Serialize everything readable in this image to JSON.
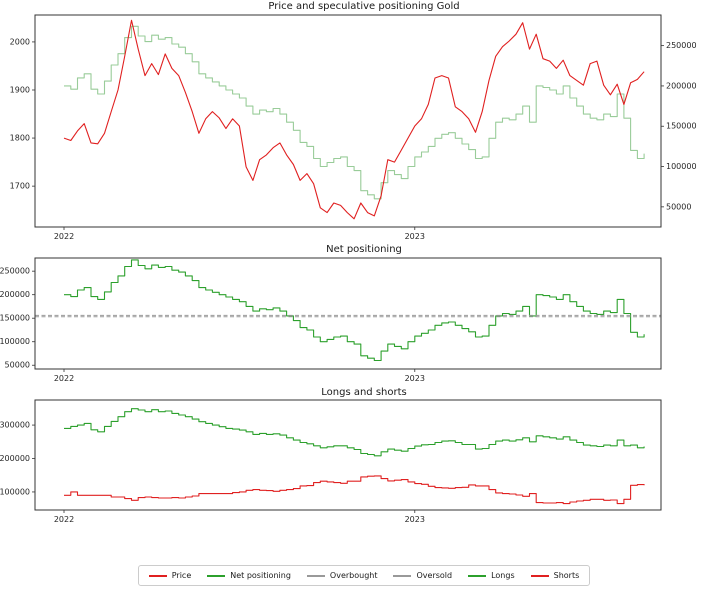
{
  "figure": {
    "background": "#ffffff",
    "axis_color": "#333333",
    "tick_color": "#262626"
  },
  "legend": {
    "items": [
      {
        "label": "Price",
        "color": "#e02020"
      },
      {
        "label": "Net positioning",
        "color": "#2ca02c"
      },
      {
        "label": "Overbought",
        "color": "#999999"
      },
      {
        "label": "Oversold",
        "color": "#999999"
      },
      {
        "label": "Longs",
        "color": "#2ca02c"
      },
      {
        "label": "Shorts",
        "color": "#e02020"
      }
    ]
  },
  "series_values": {
    "price": [
      1800,
      1795,
      1815,
      1830,
      1790,
      1788,
      1810,
      1855,
      1900,
      1970,
      2045,
      1985,
      1930,
      1955,
      1932,
      1975,
      1945,
      1930,
      1895,
      1855,
      1810,
      1840,
      1855,
      1842,
      1820,
      1840,
      1825,
      1740,
      1712,
      1755,
      1765,
      1780,
      1790,
      1765,
      1745,
      1712,
      1726,
      1705,
      1655,
      1645,
      1665,
      1660,
      1645,
      1632,
      1665,
      1645,
      1638,
      1680,
      1755,
      1750,
      1775,
      1800,
      1825,
      1840,
      1870,
      1925,
      1930,
      1925,
      1865,
      1855,
      1840,
      1812,
      1855,
      1920,
      1970,
      1990,
      2002,
      2016,
      2040,
      1985,
      2016,
      1965,
      1960,
      1945,
      1962,
      1930,
      1920,
      1910,
      1955,
      1960,
      1910,
      1890,
      1912,
      1870,
      1915,
      1922,
      1938
    ],
    "net": [
      200000,
      196000,
      210000,
      215000,
      196000,
      190000,
      206000,
      226000,
      240000,
      260000,
      274000,
      262000,
      255000,
      263000,
      258000,
      260000,
      252000,
      248000,
      240000,
      230000,
      215000,
      210000,
      205000,
      200000,
      195000,
      190000,
      185000,
      175000,
      165000,
      170000,
      168000,
      172000,
      165000,
      155000,
      145000,
      130000,
      125000,
      110000,
      100000,
      105000,
      110000,
      112000,
      100000,
      95000,
      70000,
      65000,
      60000,
      80000,
      95000,
      90000,
      85000,
      100000,
      112000,
      118000,
      125000,
      135000,
      140000,
      142000,
      135000,
      128000,
      121000,
      110000,
      112000,
      135000,
      155000,
      160000,
      158000,
      165000,
      175000,
      155000,
      200000,
      198000,
      195000,
      190000,
      200000,
      185000,
      175000,
      165000,
      160000,
      158000,
      165000,
      162000,
      190000,
      160000,
      120000,
      110000,
      116000
    ],
    "longs": [
      290000,
      296000,
      300000,
      305000,
      286000,
      280000,
      296000,
      311000,
      325000,
      340000,
      349000,
      345000,
      340000,
      346000,
      340000,
      342000,
      335000,
      330000,
      325000,
      318000,
      310000,
      305000,
      300000,
      295000,
      290000,
      288000,
      285000,
      280000,
      272000,
      275000,
      272000,
      274000,
      270000,
      262000,
      255000,
      248000,
      244000,
      238000,
      232000,
      235000,
      238000,
      238000,
      232000,
      227000,
      215000,
      212000,
      208000,
      220000,
      228000,
      225000,
      222000,
      230000,
      237000,
      241000,
      242000,
      248000,
      252000,
      253000,
      248000,
      242000,
      242000,
      228000,
      230000,
      242000,
      252000,
      255000,
      252000,
      256000,
      262000,
      250000,
      268000,
      265000,
      262000,
      258000,
      265000,
      255000,
      248000,
      240000,
      238000,
      236000,
      240000,
      238000,
      255000,
      238000,
      240000,
      232000,
      236000
    ],
    "shorts": [
      90000,
      100000,
      90000,
      90000,
      90000,
      90000,
      90000,
      85000,
      85000,
      80000,
      75000,
      83000,
      85000,
      83000,
      82000,
      82000,
      83000,
      82000,
      85000,
      88000,
      95000,
      95000,
      95000,
      95000,
      95000,
      98000,
      100000,
      105000,
      107000,
      105000,
      104000,
      102000,
      105000,
      107000,
      110000,
      118000,
      119000,
      128000,
      132000,
      130000,
      128000,
      126000,
      132000,
      132000,
      145000,
      147000,
      148000,
      140000,
      133000,
      135000,
      137000,
      130000,
      125000,
      123000,
      117000,
      113000,
      112000,
      111000,
      113000,
      114000,
      121000,
      118000,
      118000,
      107000,
      97000,
      95000,
      94000,
      91000,
      87000,
      95000,
      68000,
      67000,
      67000,
      68000,
      65000,
      70000,
      73000,
      75000,
      78000,
      78000,
      75000,
      76000,
      65000,
      78000,
      120000,
      122000,
      120000
    ]
  },
  "chart_data": [
    {
      "type": "line",
      "title": "Price and speculative positioning Gold",
      "xlim": [
        -4.3,
        88.5
      ],
      "xticks": [
        0,
        52
      ],
      "xtick_labels": [
        "2022",
        "2023"
      ],
      "left_axis": {
        "ylabel": "",
        "ylim": [
          1615,
          2056
        ],
        "ticks": [
          1700,
          1800,
          1900,
          2000
        ]
      },
      "right_axis": {
        "ylabel": "",
        "ylim": [
          25000,
          288000
        ],
        "ticks": [
          50000,
          100000,
          150000,
          200000,
          250000
        ]
      },
      "series": [
        {
          "name": "Net positioning",
          "ref": "net",
          "color": "#99cc99",
          "style": "step",
          "axis": "right",
          "width": 1.1
        },
        {
          "name": "Price",
          "ref": "price",
          "color": "#e02020",
          "style": "linear",
          "axis": "left",
          "width": 1.1
        }
      ]
    },
    {
      "type": "line",
      "title": "Net positioning",
      "xlim": [
        -4.3,
        88.5
      ],
      "xticks": [
        0,
        52
      ],
      "xtick_labels": [
        "2022",
        "2023"
      ],
      "left_axis": {
        "ylabel": "",
        "ylim": [
          42000,
          278000
        ],
        "ticks": [
          50000,
          100000,
          150000,
          200000,
          250000
        ]
      },
      "series": [
        {
          "name": "Net positioning",
          "ref": "net",
          "color": "#2ca02c",
          "style": "step",
          "axis": "left",
          "width": 1.1
        },
        {
          "name": "Overbought",
          "style": "hline",
          "value": 156000,
          "color": "#999999",
          "dash": "4 2.5",
          "axis": "left",
          "width": 1
        },
        {
          "name": "Oversold",
          "style": "hline",
          "value": 153000,
          "color": "#999999",
          "dash": "4 2.5",
          "axis": "left",
          "width": 1
        }
      ]
    },
    {
      "type": "line",
      "title": "Longs and shorts",
      "xlim": [
        -4.3,
        88.5
      ],
      "xticks": [
        0,
        52
      ],
      "xtick_labels": [
        "2022",
        "2023"
      ],
      "left_axis": {
        "ylabel": "",
        "ylim": [
          46000,
          375000
        ],
        "ticks": [
          100000,
          200000,
          300000
        ]
      },
      "series": [
        {
          "name": "Longs",
          "ref": "longs",
          "color": "#2ca02c",
          "style": "step",
          "axis": "left",
          "width": 1.1
        },
        {
          "name": "Shorts",
          "ref": "shorts",
          "color": "#e02020",
          "style": "step",
          "axis": "left",
          "width": 1.1
        }
      ]
    }
  ]
}
